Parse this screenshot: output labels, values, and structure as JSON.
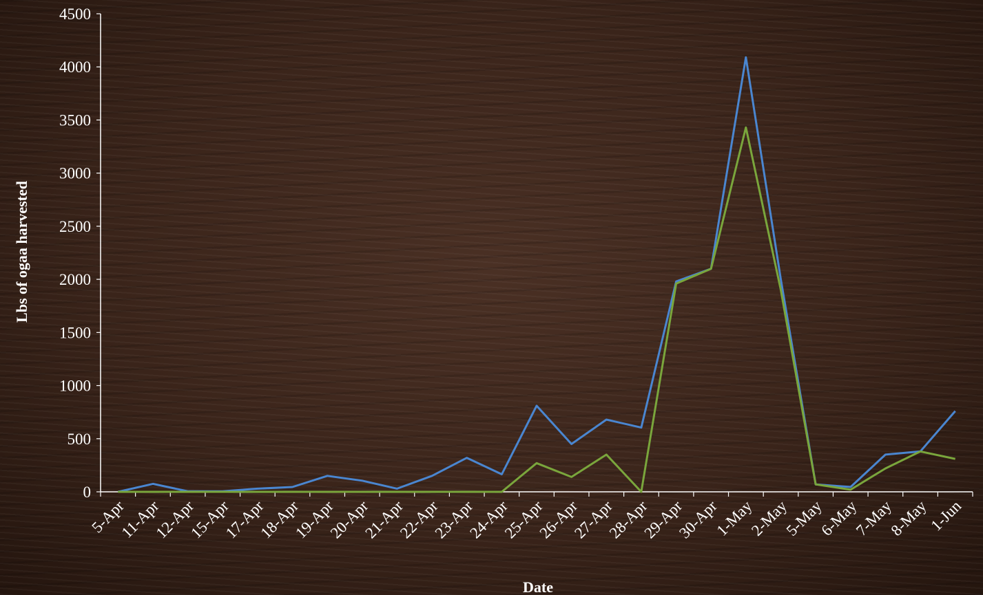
{
  "chart_data": {
    "type": "line",
    "title": "",
    "xlabel": "Date",
    "ylabel": "Lbs of ogaa harvested",
    "ylim": [
      0,
      4500
    ],
    "yticks": [
      0,
      500,
      1000,
      1500,
      2000,
      2500,
      3000,
      3500,
      4000,
      4500
    ],
    "grid": false,
    "legend": "none",
    "categories": [
      "5-Apr",
      "11-Apr",
      "12-Apr",
      "15-Apr",
      "17-Apr",
      "18-Apr",
      "19-Apr",
      "20-Apr",
      "21-Apr",
      "22-Apr",
      "23-Apr",
      "24-Apr",
      "25-Apr",
      "26-Apr",
      "27-Apr",
      "28-Apr",
      "29-Apr",
      "30-Apr",
      "1-May",
      "2-May",
      "5-May",
      "6-May",
      "7-May",
      "8-May",
      "1-Jun"
    ],
    "series": [
      {
        "color": "#4a86d0",
        "values": [
          0,
          75,
          5,
          5,
          30,
          45,
          150,
          105,
          30,
          150,
          320,
          165,
          810,
          450,
          680,
          605,
          1980,
          2100,
          4090,
          2000,
          70,
          45,
          350,
          380,
          760
        ]
      },
      {
        "color": "#7aa63c",
        "values": [
          0,
          0,
          0,
          0,
          0,
          0,
          0,
          0,
          0,
          0,
          0,
          0,
          270,
          140,
          350,
          0,
          1960,
          2100,
          3430,
          1900,
          70,
          20,
          220,
          380,
          310
        ]
      }
    ]
  }
}
